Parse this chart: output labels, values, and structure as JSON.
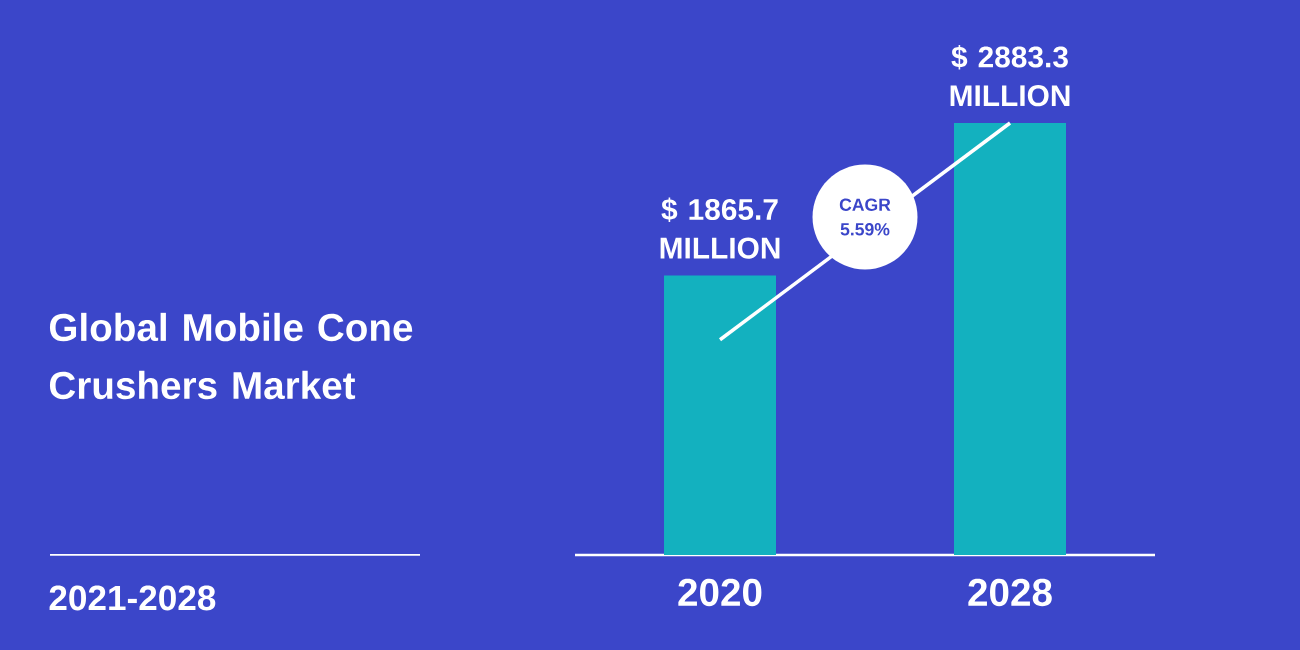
{
  "chart_data": {
    "type": "bar",
    "title": "Global Mobile Cone Crushers Market",
    "subtitle": "2021-2028",
    "categories": [
      "2020",
      "2028"
    ],
    "values": [
      1865.7,
      2883.3
    ],
    "value_labels": [
      "$ 1865.7 MILLION",
      "$ 2883.3 MILLION"
    ],
    "color": "#13b1bf",
    "annotations": [
      "CAGR 5.59%"
    ]
  }
}
